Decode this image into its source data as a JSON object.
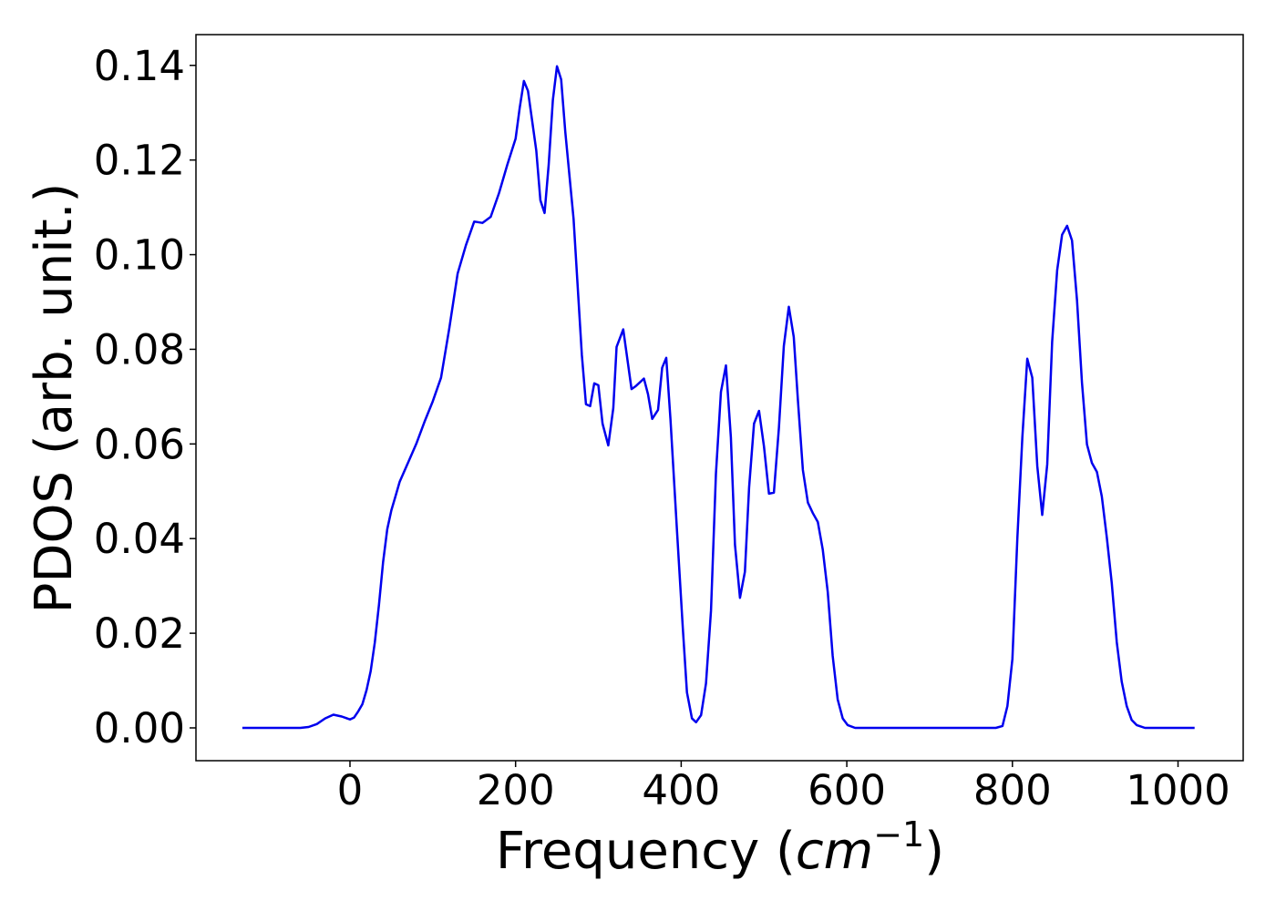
{
  "chart_data": {
    "type": "line",
    "x_label": [
      "Frequency (",
      "cm",
      "−1",
      ")"
    ],
    "y_label": "PDOS (arb. unit.)",
    "x": [
      -130,
      -60,
      -50,
      -40,
      -30,
      -20,
      -10,
      0,
      5,
      10,
      15,
      20,
      25,
      30,
      35,
      40,
      45,
      50,
      55,
      60,
      70,
      80,
      90,
      100,
      110,
      120,
      130,
      140,
      150,
      160,
      170,
      180,
      190,
      200,
      205,
      210,
      215,
      225,
      230,
      235,
      240,
      245,
      250,
      255,
      260,
      270,
      280,
      285,
      290,
      295,
      300,
      305,
      312,
      318,
      322,
      330,
      340,
      345,
      355,
      360,
      365,
      372,
      377,
      382,
      387,
      395,
      402,
      407,
      413,
      418,
      424,
      430,
      436,
      442,
      448,
      454,
      460,
      465,
      471,
      477,
      482,
      488,
      494,
      500,
      506,
      512,
      518,
      524,
      530,
      536,
      541,
      547,
      553,
      559,
      565,
      571,
      577,
      583,
      589,
      595,
      601,
      610,
      780,
      788,
      794,
      800,
      806,
      812,
      818,
      824,
      830,
      836,
      842,
      848,
      854,
      860,
      866,
      872,
      878,
      884,
      890,
      896,
      902,
      908,
      914,
      920,
      926,
      932,
      938,
      944,
      950,
      960,
      1020
    ],
    "series": [
      {
        "name": "PDOS",
        "color": "#0000ee",
        "values": [
          0,
          0,
          0.0002,
          0.0008,
          0.002,
          0.0028,
          0.0024,
          0.0018,
          0.0022,
          0.0035,
          0.005,
          0.008,
          0.012,
          0.018,
          0.026,
          0.035,
          0.042,
          0.046,
          0.049,
          0.052,
          0.056,
          0.06,
          0.0647,
          0.069,
          0.074,
          0.0845,
          0.096,
          0.102,
          0.107,
          0.1067,
          0.108,
          0.113,
          0.119,
          0.1245,
          0.131,
          0.1367,
          0.1346,
          0.122,
          0.1115,
          0.1088,
          0.119,
          0.1327,
          0.1398,
          0.137,
          0.126,
          0.1076,
          0.0788,
          0.0684,
          0.068,
          0.0728,
          0.0724,
          0.0643,
          0.0597,
          0.0676,
          0.0805,
          0.0842,
          0.0716,
          0.0722,
          0.0738,
          0.0705,
          0.0653,
          0.0672,
          0.0761,
          0.0782,
          0.0653,
          0.0416,
          0.021,
          0.0075,
          0.002,
          0.0012,
          0.0027,
          0.0094,
          0.0248,
          0.0537,
          0.071,
          0.0766,
          0.0614,
          0.0387,
          0.0275,
          0.033,
          0.0508,
          0.0643,
          0.067,
          0.0595,
          0.0495,
          0.0497,
          0.0634,
          0.0807,
          0.089,
          0.0826,
          0.0691,
          0.0545,
          0.0476,
          0.0454,
          0.0435,
          0.0377,
          0.0287,
          0.0152,
          0.006,
          0.002,
          0.0006,
          0,
          0,
          0.0004,
          0.0046,
          0.0146,
          0.04,
          0.0614,
          0.078,
          0.074,
          0.0553,
          0.045,
          0.0557,
          0.0816,
          0.0967,
          0.1042,
          0.1061,
          0.103,
          0.0903,
          0.073,
          0.0599,
          0.056,
          0.0541,
          0.0489,
          0.0402,
          0.0306,
          0.0181,
          0.0098,
          0.0046,
          0.0017,
          0.0006,
          0,
          0
        ]
      }
    ],
    "xlim": [
      -186,
      1078.7
    ],
    "ylim": [
      -0.00693,
      0.1465
    ],
    "xticks": [
      0,
      200,
      400,
      600,
      800,
      1000
    ],
    "yticks": [
      {
        "value": 0,
        "label": "0.00"
      },
      {
        "value": 0.02,
        "label": "0.02"
      },
      {
        "value": 0.04,
        "label": "0.04"
      },
      {
        "value": 0.06,
        "label": "0.06"
      },
      {
        "value": 0.08,
        "label": "0.08"
      },
      {
        "value": 0.1,
        "label": "0.10"
      },
      {
        "value": 0.12,
        "label": "0.12"
      },
      {
        "value": 0.14,
        "label": "0.14"
      }
    ],
    "grid": false
  }
}
